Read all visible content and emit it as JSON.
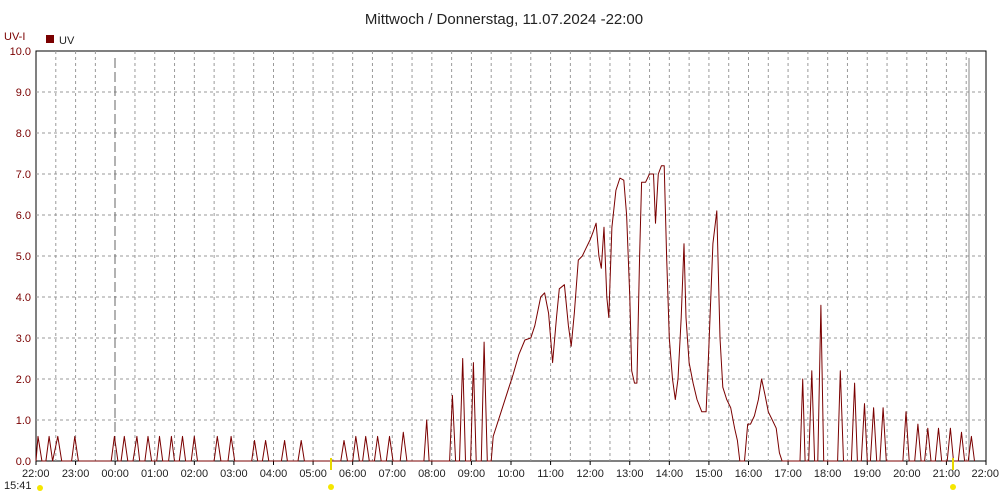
{
  "chart_data": {
    "type": "line",
    "title": "Mittwoch / Donnerstag, 11.07.2024  -22:00",
    "ylabel": "UV-I",
    "xlabel": "",
    "ylim": [
      0,
      10
    ],
    "y_ticks": [
      "0.0",
      "1.0",
      "2.0",
      "3.0",
      "4.0",
      "5.0",
      "6.0",
      "7.0",
      "8.0",
      "9.0",
      "10.0"
    ],
    "x_ticks": [
      "22:00",
      "23:00",
      "00:00",
      "01:00",
      "02:00",
      "03:00",
      "04:00",
      "05:00",
      "06:00",
      "07:00",
      "08:00",
      "09:00",
      "10:00",
      "11:00",
      "12:00",
      "13:00",
      "14:00",
      "15:00",
      "16:00",
      "17:00",
      "18:00",
      "19:00",
      "20:00",
      "21:00",
      "22:00"
    ],
    "x_range_hours": [
      0,
      24
    ],
    "grid": true,
    "legend_position": "top-left",
    "start_time_label": "15:41",
    "colors": {
      "series": "#7a0000",
      "grid": "#9a9a9a",
      "marker": "#f5e600"
    },
    "series": [
      {
        "name": "UV",
        "color": "#7a0000",
        "points": [
          [
            0.0,
            0
          ],
          [
            0.05,
            0.6
          ],
          [
            0.15,
            0
          ],
          [
            0.25,
            0
          ],
          [
            0.33,
            0.6
          ],
          [
            0.42,
            0
          ],
          [
            0.55,
            0.6
          ],
          [
            0.65,
            0
          ],
          [
            0.9,
            0
          ],
          [
            0.98,
            0.6
          ],
          [
            1.07,
            0
          ],
          [
            1.9,
            0
          ],
          [
            1.98,
            0.6
          ],
          [
            2.07,
            0
          ],
          [
            2.15,
            0
          ],
          [
            2.23,
            0.6
          ],
          [
            2.32,
            0
          ],
          [
            2.45,
            0
          ],
          [
            2.55,
            0.6
          ],
          [
            2.62,
            0
          ],
          [
            2.75,
            0
          ],
          [
            2.83,
            0.6
          ],
          [
            2.92,
            0
          ],
          [
            3.05,
            0
          ],
          [
            3.12,
            0.6
          ],
          [
            3.2,
            0
          ],
          [
            3.35,
            0
          ],
          [
            3.42,
            0.6
          ],
          [
            3.5,
            0
          ],
          [
            3.62,
            0
          ],
          [
            3.7,
            0.6
          ],
          [
            3.78,
            0
          ],
          [
            3.92,
            0
          ],
          [
            4.0,
            0.6
          ],
          [
            4.08,
            0
          ],
          [
            4.5,
            0
          ],
          [
            4.58,
            0.6
          ],
          [
            4.67,
            0
          ],
          [
            4.85,
            0
          ],
          [
            4.93,
            0.6
          ],
          [
            5.02,
            0
          ],
          [
            5.45,
            0
          ],
          [
            5.52,
            0.5
          ],
          [
            5.6,
            0
          ],
          [
            5.72,
            0
          ],
          [
            5.8,
            0.5
          ],
          [
            5.88,
            0
          ],
          [
            6.2,
            0
          ],
          [
            6.28,
            0.5
          ],
          [
            6.35,
            0
          ],
          [
            6.62,
            0
          ],
          [
            6.7,
            0.5
          ],
          [
            6.78,
            0
          ],
          [
            7.7,
            0
          ],
          [
            7.78,
            0.5
          ],
          [
            7.87,
            0
          ],
          [
            8.0,
            0
          ],
          [
            8.08,
            0.6
          ],
          [
            8.17,
            0
          ],
          [
            8.25,
            0
          ],
          [
            8.33,
            0.6
          ],
          [
            8.42,
            0
          ],
          [
            8.55,
            0
          ],
          [
            8.63,
            0.6
          ],
          [
            8.72,
            0
          ],
          [
            8.85,
            0
          ],
          [
            8.93,
            0.6
          ],
          [
            9.02,
            0
          ],
          [
            9.2,
            0
          ],
          [
            9.28,
            0.7
          ],
          [
            9.37,
            0
          ],
          [
            9.8,
            0
          ],
          [
            9.87,
            1.0
          ],
          [
            9.93,
            0
          ],
          [
            10.45,
            0
          ],
          [
            10.52,
            1.6
          ],
          [
            10.6,
            0
          ],
          [
            10.7,
            0
          ],
          [
            10.78,
            2.5
          ],
          [
            10.85,
            0
          ],
          [
            10.98,
            0
          ],
          [
            11.05,
            2.4
          ],
          [
            11.12,
            0
          ],
          [
            11.25,
            0
          ],
          [
            11.32,
            2.9
          ],
          [
            11.4,
            0
          ],
          [
            11.5,
            0
          ],
          [
            11.55,
            0.6
          ],
          [
            11.75,
            1.2
          ],
          [
            11.95,
            1.8
          ],
          [
            12.05,
            2.1
          ],
          [
            12.2,
            2.6
          ],
          [
            12.35,
            2.95
          ],
          [
            12.5,
            3.0
          ],
          [
            12.6,
            3.3
          ],
          [
            12.75,
            4.0
          ],
          [
            12.85,
            4.1
          ],
          [
            12.95,
            3.6
          ],
          [
            13.05,
            2.4
          ],
          [
            13.15,
            3.5
          ],
          [
            13.22,
            4.2
          ],
          [
            13.35,
            4.3
          ],
          [
            13.45,
            3.3
          ],
          [
            13.52,
            2.8
          ],
          [
            13.6,
            3.6
          ],
          [
            13.7,
            4.9
          ],
          [
            13.8,
            5.0
          ],
          [
            13.9,
            5.2
          ],
          [
            14.0,
            5.4
          ],
          [
            14.08,
            5.6
          ],
          [
            14.15,
            5.8
          ],
          [
            14.22,
            5.0
          ],
          [
            14.28,
            4.7
          ],
          [
            14.35,
            5.7
          ],
          [
            14.42,
            4.0
          ],
          [
            14.47,
            3.5
          ],
          [
            14.55,
            5.7
          ],
          [
            14.65,
            6.6
          ],
          [
            14.75,
            6.9
          ],
          [
            14.85,
            6.85
          ],
          [
            14.92,
            6.0
          ],
          [
            15.0,
            4.0
          ],
          [
            15.05,
            2.2
          ],
          [
            15.12,
            1.9
          ],
          [
            15.18,
            1.9
          ],
          [
            15.25,
            5.0
          ],
          [
            15.3,
            6.8
          ],
          [
            15.4,
            6.8
          ],
          [
            15.5,
            7.0
          ],
          [
            15.6,
            7.0
          ],
          [
            15.65,
            5.8
          ],
          [
            15.72,
            7.0
          ],
          [
            15.8,
            7.2
          ],
          [
            15.87,
            7.2
          ],
          [
            15.93,
            5.0
          ],
          [
            16.0,
            3.0
          ],
          [
            16.08,
            2.0
          ],
          [
            16.15,
            1.5
          ],
          [
            16.22,
            2.0
          ],
          [
            16.3,
            3.5
          ],
          [
            16.37,
            5.3
          ],
          [
            16.42,
            3.5
          ],
          [
            16.5,
            2.4
          ],
          [
            16.6,
            1.9
          ],
          [
            16.7,
            1.5
          ],
          [
            16.82,
            1.2
          ],
          [
            16.93,
            1.2
          ],
          [
            17.0,
            2.8
          ],
          [
            17.1,
            5.3
          ],
          [
            17.2,
            6.1
          ],
          [
            17.28,
            3.0
          ],
          [
            17.35,
            1.8
          ],
          [
            17.45,
            1.5
          ],
          [
            17.55,
            1.3
          ],
          [
            17.65,
            0.8
          ],
          [
            17.72,
            0.5
          ],
          [
            17.78,
            0
          ],
          [
            17.9,
            0
          ],
          [
            17.98,
            0.9
          ],
          [
            18.05,
            0.9
          ],
          [
            18.15,
            1.1
          ],
          [
            18.25,
            1.5
          ],
          [
            18.33,
            2.0
          ],
          [
            18.42,
            1.6
          ],
          [
            18.5,
            1.2
          ],
          [
            18.6,
            1.0
          ],
          [
            18.7,
            0.8
          ],
          [
            18.78,
            0.2
          ],
          [
            18.85,
            0
          ],
          [
            19.3,
            0
          ],
          [
            19.37,
            2.0
          ],
          [
            19.43,
            0
          ],
          [
            19.52,
            0
          ],
          [
            19.6,
            2.2
          ],
          [
            19.67,
            0
          ],
          [
            19.75,
            0
          ],
          [
            19.83,
            3.8
          ],
          [
            19.9,
            0
          ],
          [
            20.25,
            0
          ],
          [
            20.32,
            2.2
          ],
          [
            20.4,
            0
          ],
          [
            20.6,
            0
          ],
          [
            20.68,
            1.9
          ],
          [
            20.75,
            0
          ],
          [
            20.85,
            0
          ],
          [
            20.93,
            1.4
          ],
          [
            21.0,
            0
          ],
          [
            21.08,
            0
          ],
          [
            21.16,
            1.3
          ],
          [
            21.24,
            0
          ],
          [
            21.32,
            0
          ],
          [
            21.4,
            1.3
          ],
          [
            21.48,
            0
          ],
          [
            21.9,
            0
          ],
          [
            21.98,
            1.2
          ],
          [
            22.06,
            0
          ],
          [
            22.2,
            0
          ],
          [
            22.28,
            0.9
          ],
          [
            22.36,
            0
          ],
          [
            22.45,
            0
          ],
          [
            22.53,
            0.8
          ],
          [
            22.61,
            0
          ],
          [
            22.72,
            0
          ],
          [
            22.8,
            0.8
          ],
          [
            22.88,
            0
          ],
          [
            23.02,
            0
          ],
          [
            23.1,
            0.8
          ],
          [
            23.18,
            0
          ],
          [
            23.3,
            0
          ],
          [
            23.38,
            0.7
          ],
          [
            23.46,
            0
          ],
          [
            23.55,
            0
          ],
          [
            23.63,
            0.6
          ],
          [
            23.71,
            0
          ]
        ]
      }
    ]
  }
}
